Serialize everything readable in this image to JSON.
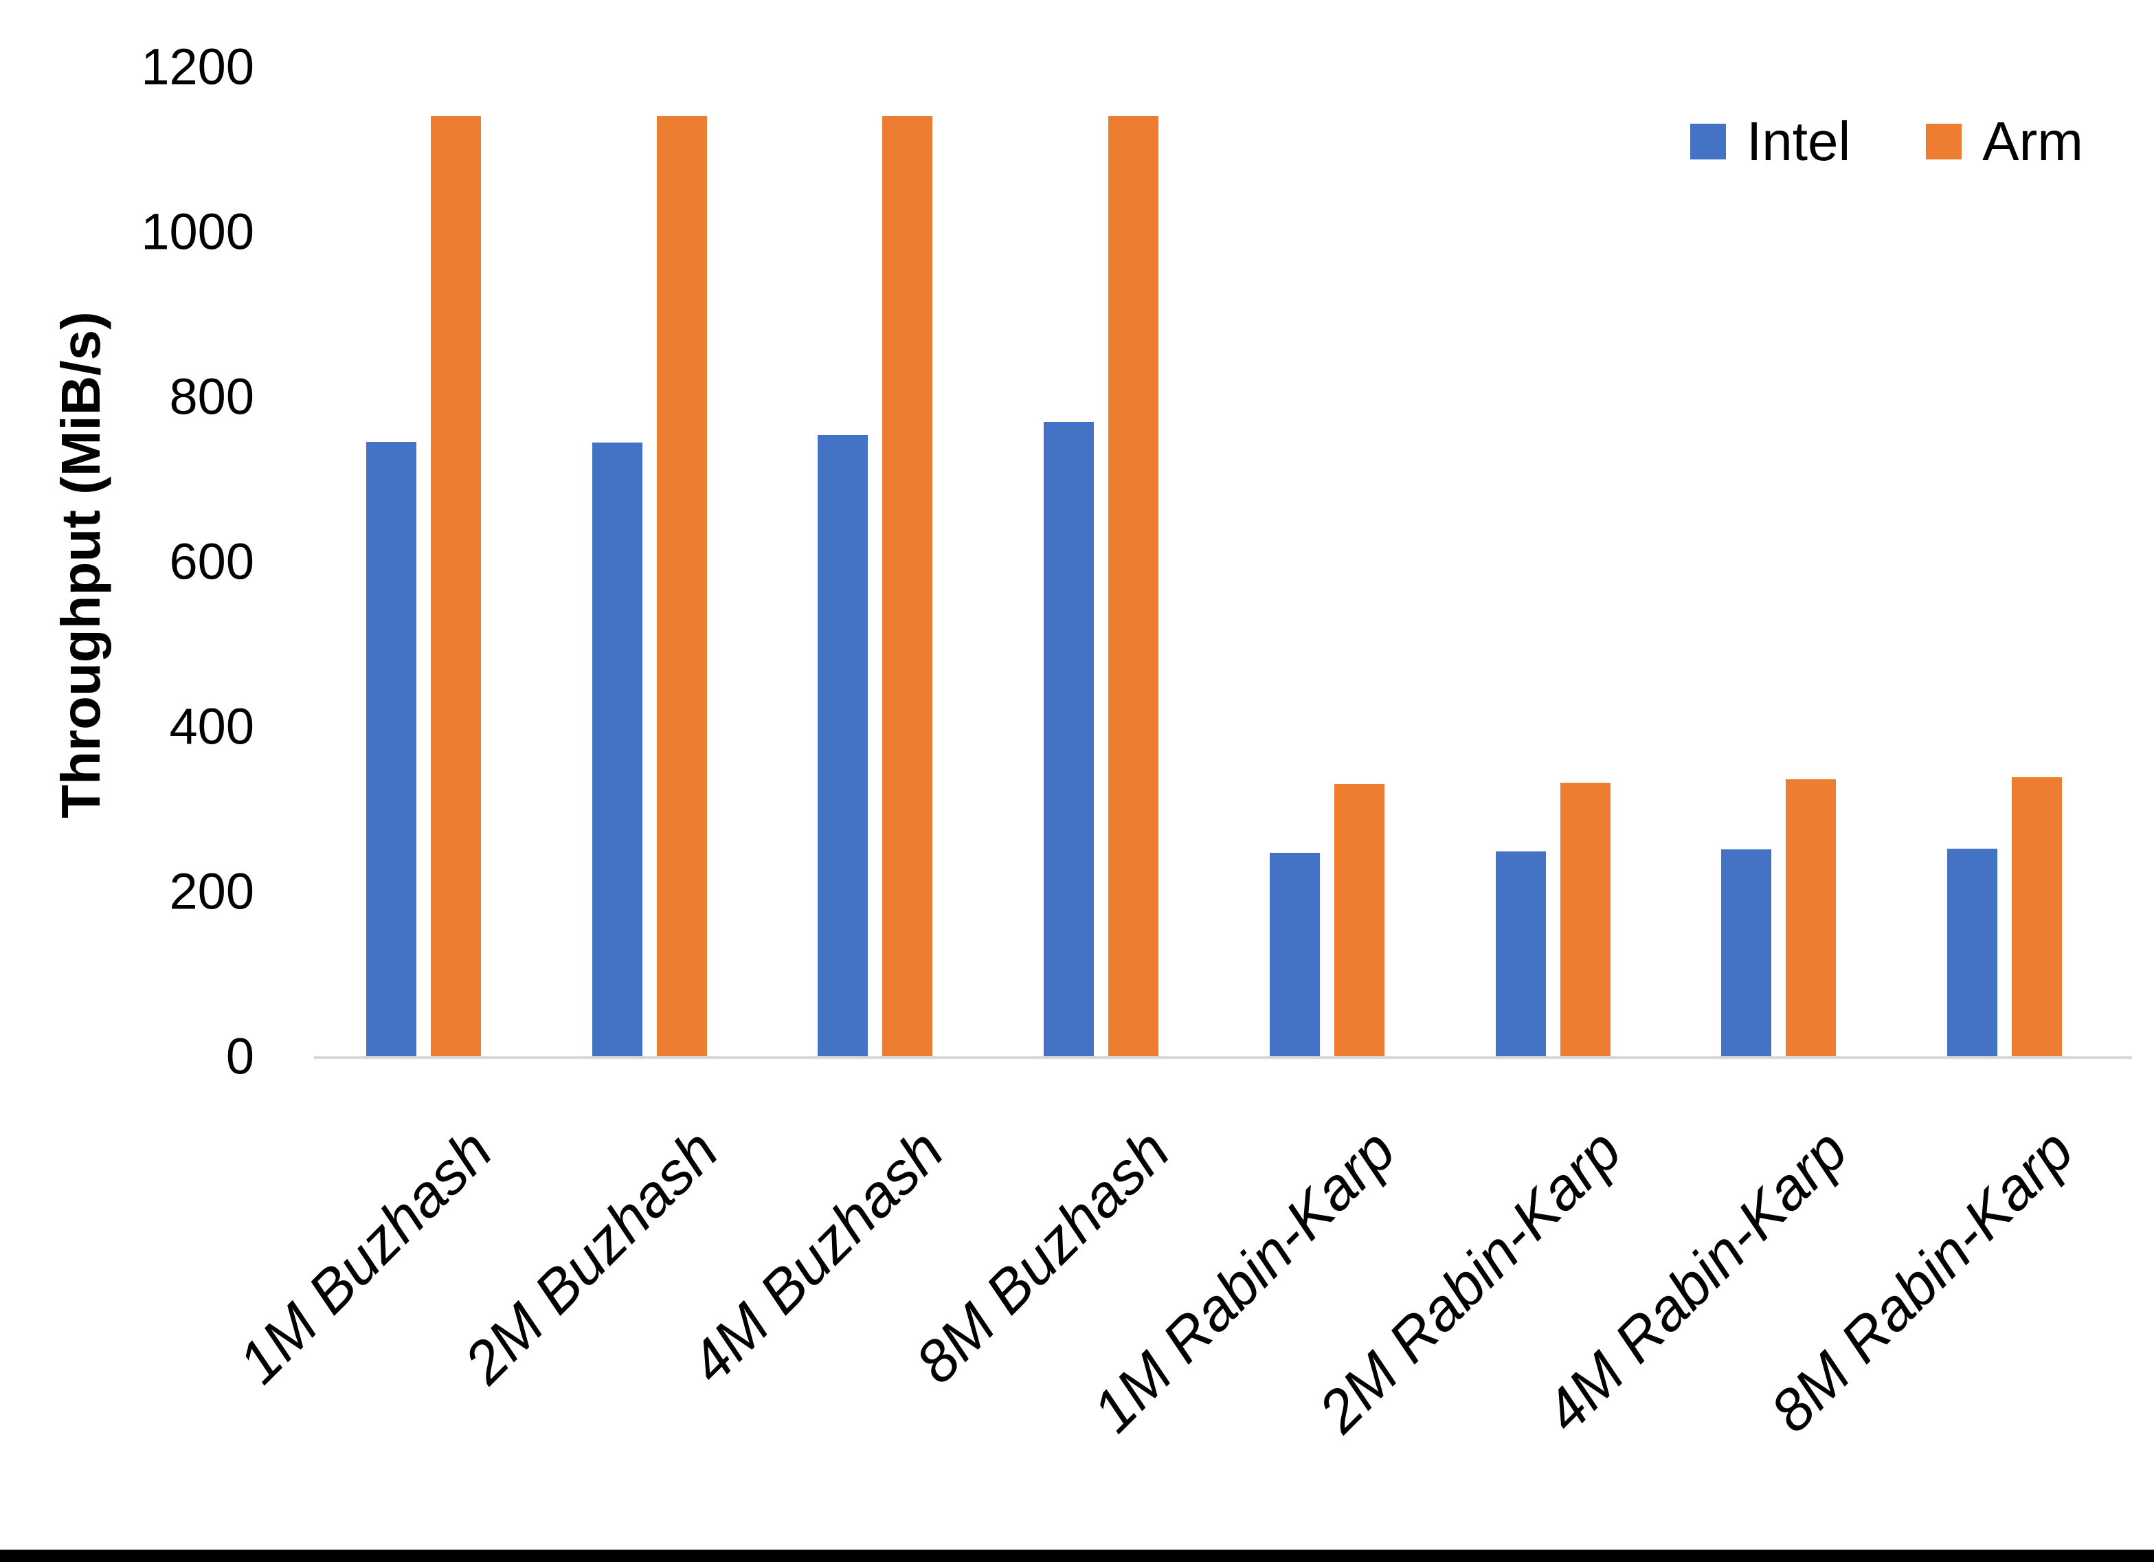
{
  "chart_data": {
    "type": "bar",
    "title": "",
    "xlabel": "",
    "ylabel": "Throughput (MiB/s)",
    "ylim": [
      0,
      1200
    ],
    "yticks": [
      1200,
      1000,
      800,
      600,
      400,
      200,
      0
    ],
    "grid": false,
    "legend_position": "top-right",
    "categories": [
      "1M Buzhash",
      "2M Buzhash",
      "4M Buzhash",
      "8M Buzhash",
      "1M Rabin-Karp",
      "2M Rabin-Karp",
      "4M Rabin-Karp",
      "8M Rabin-Karp"
    ],
    "series": [
      {
        "name": "Intel",
        "color": "#4472C4",
        "values": [
          745,
          744,
          753,
          769,
          247,
          248,
          251,
          252
        ]
      },
      {
        "name": "Arm",
        "color": "#ED7D31",
        "values": [
          1140,
          1140,
          1140,
          1140,
          330,
          332,
          336,
          338
        ]
      }
    ],
    "colors": {
      "axis_line": "#D9D9D9",
      "text": "#000000"
    }
  }
}
